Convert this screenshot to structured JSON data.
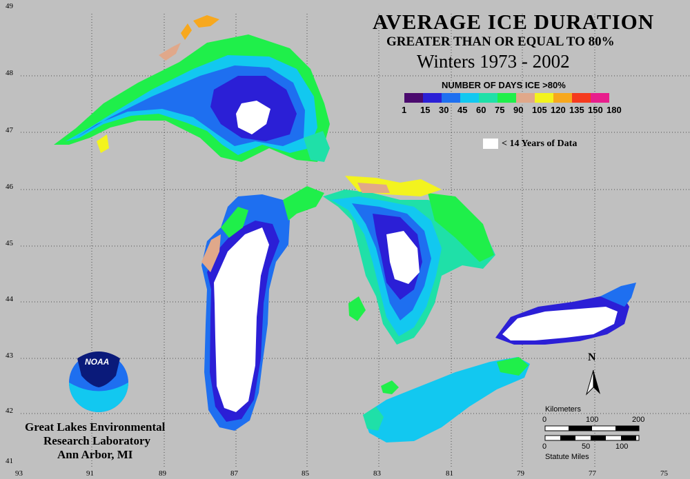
{
  "title": "AVERAGE ICE DURATION",
  "subtitle": "GREATER THAN OR EQUAL TO 80%",
  "period": "Winters 1973  - 2002",
  "legend": {
    "title": "NUMBER OF DAYS ICE >80%",
    "colors": [
      "#4b0a6e",
      "#2b1fd6",
      "#1e6ff0",
      "#12c8f0",
      "#1fe0a8",
      "#1fef4a",
      "#e0a88a",
      "#f3f31e",
      "#f7a81e",
      "#f53a1e",
      "#e81e8c"
    ],
    "ticks": [
      "1",
      "15",
      "30",
      "45",
      "60",
      "75",
      "90",
      "105",
      "120",
      "135",
      "150",
      "180"
    ],
    "no_data_label": "< 14 Years of Data",
    "no_data_color": "#ffffff"
  },
  "axes": {
    "latitudes": [
      "49",
      "48",
      "47",
      "46",
      "45",
      "44",
      "43",
      "42",
      "41"
    ],
    "longitudes": [
      "93",
      "91",
      "89",
      "87",
      "85",
      "83",
      "81",
      "79",
      "77",
      "75"
    ]
  },
  "org": {
    "logo_text": "NOAA",
    "line1": "Great Lakes Environmental",
    "line2": "Research Laboratory",
    "line3": "Ann Arbor, MI"
  },
  "north": "N",
  "scale": {
    "km_label": "Kilometers",
    "km_ticks": [
      "0",
      "100",
      "200"
    ],
    "mi_ticks": [
      "0",
      "50",
      "100"
    ],
    "mi_label": "Statute Miles"
  }
}
